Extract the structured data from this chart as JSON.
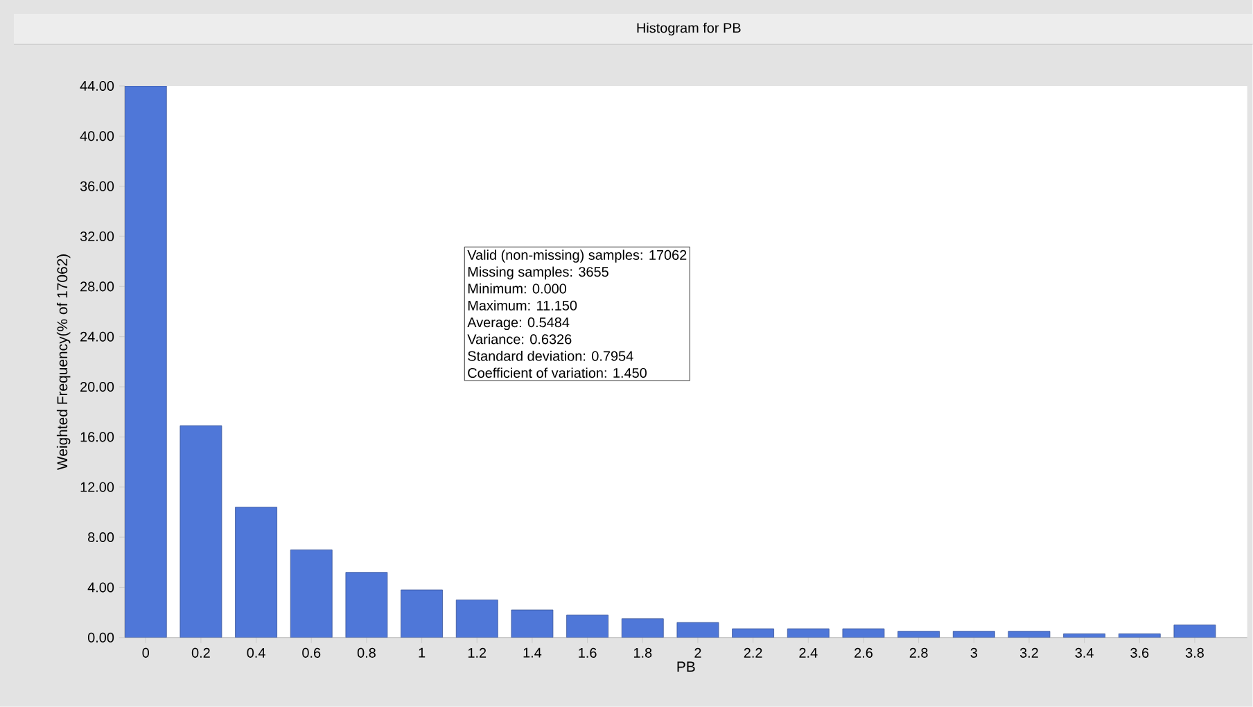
{
  "chart_data": {
    "type": "bar",
    "title": "Histogram for PB",
    "xlabel": "PB",
    "ylabel": "Weighted Frequency(% of 17062)",
    "categories": [
      "0",
      "0.2",
      "0.4",
      "0.6",
      "0.8",
      "1",
      "1.2",
      "1.4",
      "1.6",
      "1.8",
      "2",
      "2.2",
      "2.4",
      "2.6",
      "2.8",
      "3",
      "3.2",
      "3.4",
      "3.6",
      "3.8"
    ],
    "values": [
      44.0,
      16.9,
      10.4,
      7.0,
      5.2,
      3.8,
      3.0,
      2.2,
      1.8,
      1.5,
      1.2,
      0.7,
      0.7,
      0.7,
      0.5,
      0.5,
      0.5,
      0.3,
      0.3,
      1.0
    ],
    "color": "#4f77d8",
    "ylim": [
      0,
      44
    ],
    "yticks": [
      {
        "value": 0,
        "label": "0.00"
      },
      {
        "value": 4,
        "label": "4.00"
      },
      {
        "value": 8,
        "label": "8.00"
      },
      {
        "value": 12,
        "label": "12.00"
      },
      {
        "value": 16,
        "label": "16.00"
      },
      {
        "value": 20,
        "label": "20.00"
      },
      {
        "value": 24,
        "label": "24.00"
      },
      {
        "value": 28,
        "label": "28.00"
      },
      {
        "value": 32,
        "label": "32.00"
      },
      {
        "value": 36,
        "label": "36.00"
      },
      {
        "value": 40,
        "label": "40.00"
      },
      {
        "value": 44,
        "label": "44.00"
      }
    ],
    "grid": false,
    "annotations": [
      "Valid (non-missing) samples: 17062",
      "Missing samples: 3655",
      "Minimum: 0.000",
      "Maximum: 11.150",
      "Average: 0.5484",
      "Variance: 0.6326",
      "Standard deviation: 0.7954",
      "Coefficient of variation: 1.450"
    ]
  }
}
